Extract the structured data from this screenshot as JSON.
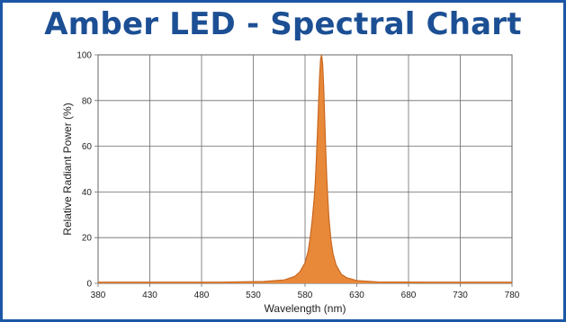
{
  "chart_data": {
    "type": "area",
    "title": "Amber LED - Spectral Chart",
    "xlabel": "Wavelength (nm)",
    "ylabel": "Relative Radiant Power (%)",
    "xlim": [
      380,
      780
    ],
    "ylim": [
      0,
      100
    ],
    "xticks": [
      380,
      430,
      480,
      530,
      580,
      630,
      680,
      730,
      780
    ],
    "yticks": [
      0,
      20,
      40,
      60,
      80,
      100
    ],
    "grid": true,
    "legend": "none",
    "fill_color": "#e8893a",
    "series": [
      {
        "x": [
          380,
          500,
          540,
          560,
          570,
          575,
          580,
          583,
          585,
          587,
          589,
          590,
          591,
          592,
          593,
          594,
          595,
          596,
          597,
          598,
          599,
          600,
          601,
          602,
          603,
          605,
          607,
          610,
          615,
          620,
          630,
          650,
          700,
          780
        ],
        "y": [
          0.5,
          0.5,
          0.8,
          1.5,
          3,
          5,
          9,
          14,
          20,
          28,
          38,
          45,
          55,
          66,
          78,
          90,
          98,
          100,
          96,
          86,
          72,
          58,
          46,
          37,
          29,
          19,
          13,
          8,
          4,
          2.5,
          1.2,
          0.6,
          0.5,
          0.5
        ]
      }
    ]
  }
}
